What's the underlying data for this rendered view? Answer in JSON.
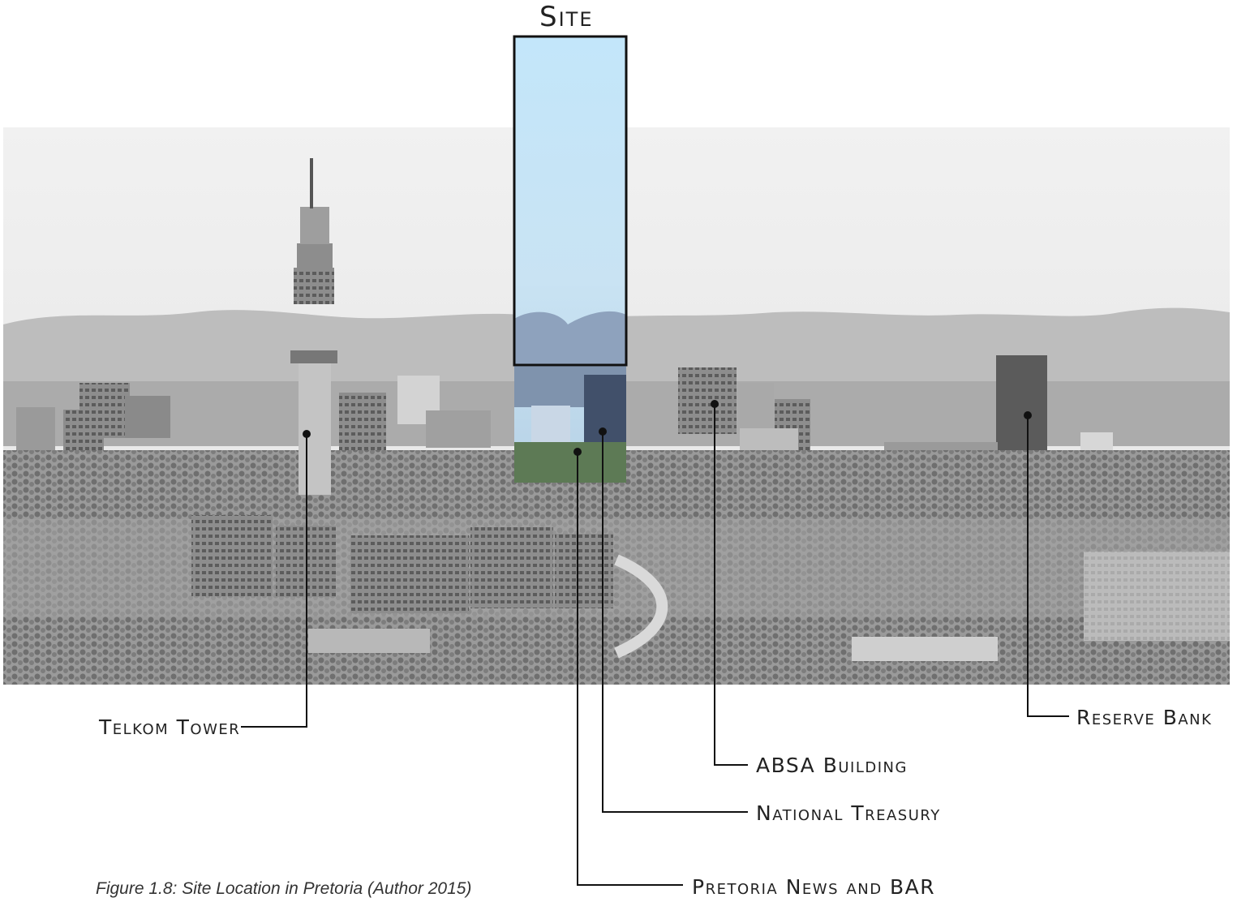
{
  "site_label": "Site",
  "labels": {
    "telkom_tower": "Telkom Tower",
    "reserve_bank": "Reserve Bank",
    "absa_building": "ABSA Building",
    "national_treasury": "National Treasury",
    "pretoria_news": "Pretoria News and BAR"
  },
  "caption": "Figure 1.8: Site Location in Pretoria (Author 2015)",
  "colors": {
    "sky": "#eeeeee",
    "site_highlight": "#bfe4f7",
    "leader_line": "#111111"
  }
}
